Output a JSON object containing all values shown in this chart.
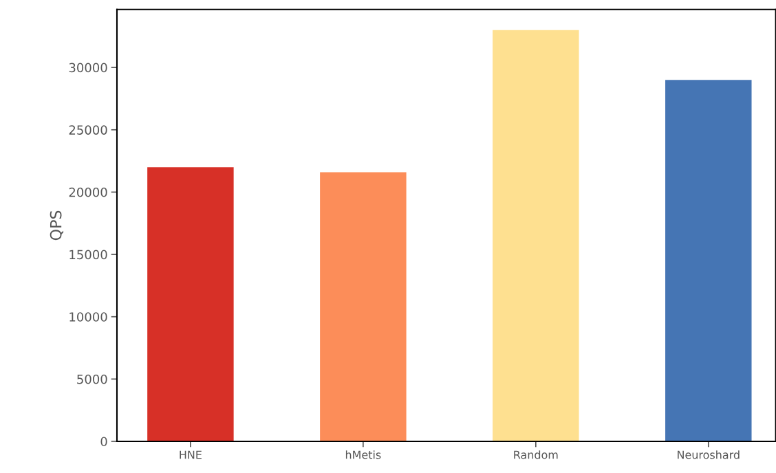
{
  "chart_data": {
    "type": "bar",
    "ylabel": "QPS",
    "categories": [
      "HNE",
      "hMetis",
      "Random",
      "Neuroshard"
    ],
    "values": [
      22000,
      21600,
      33000,
      29000
    ],
    "colors": [
      "#d73027",
      "#fc8d59",
      "#fee090",
      "#4575b4"
    ],
    "ylim": [
      0,
      34650
    ],
    "yticks": [
      0,
      5000,
      10000,
      15000,
      20000,
      25000,
      30000
    ],
    "grid": false,
    "legend": false
  }
}
